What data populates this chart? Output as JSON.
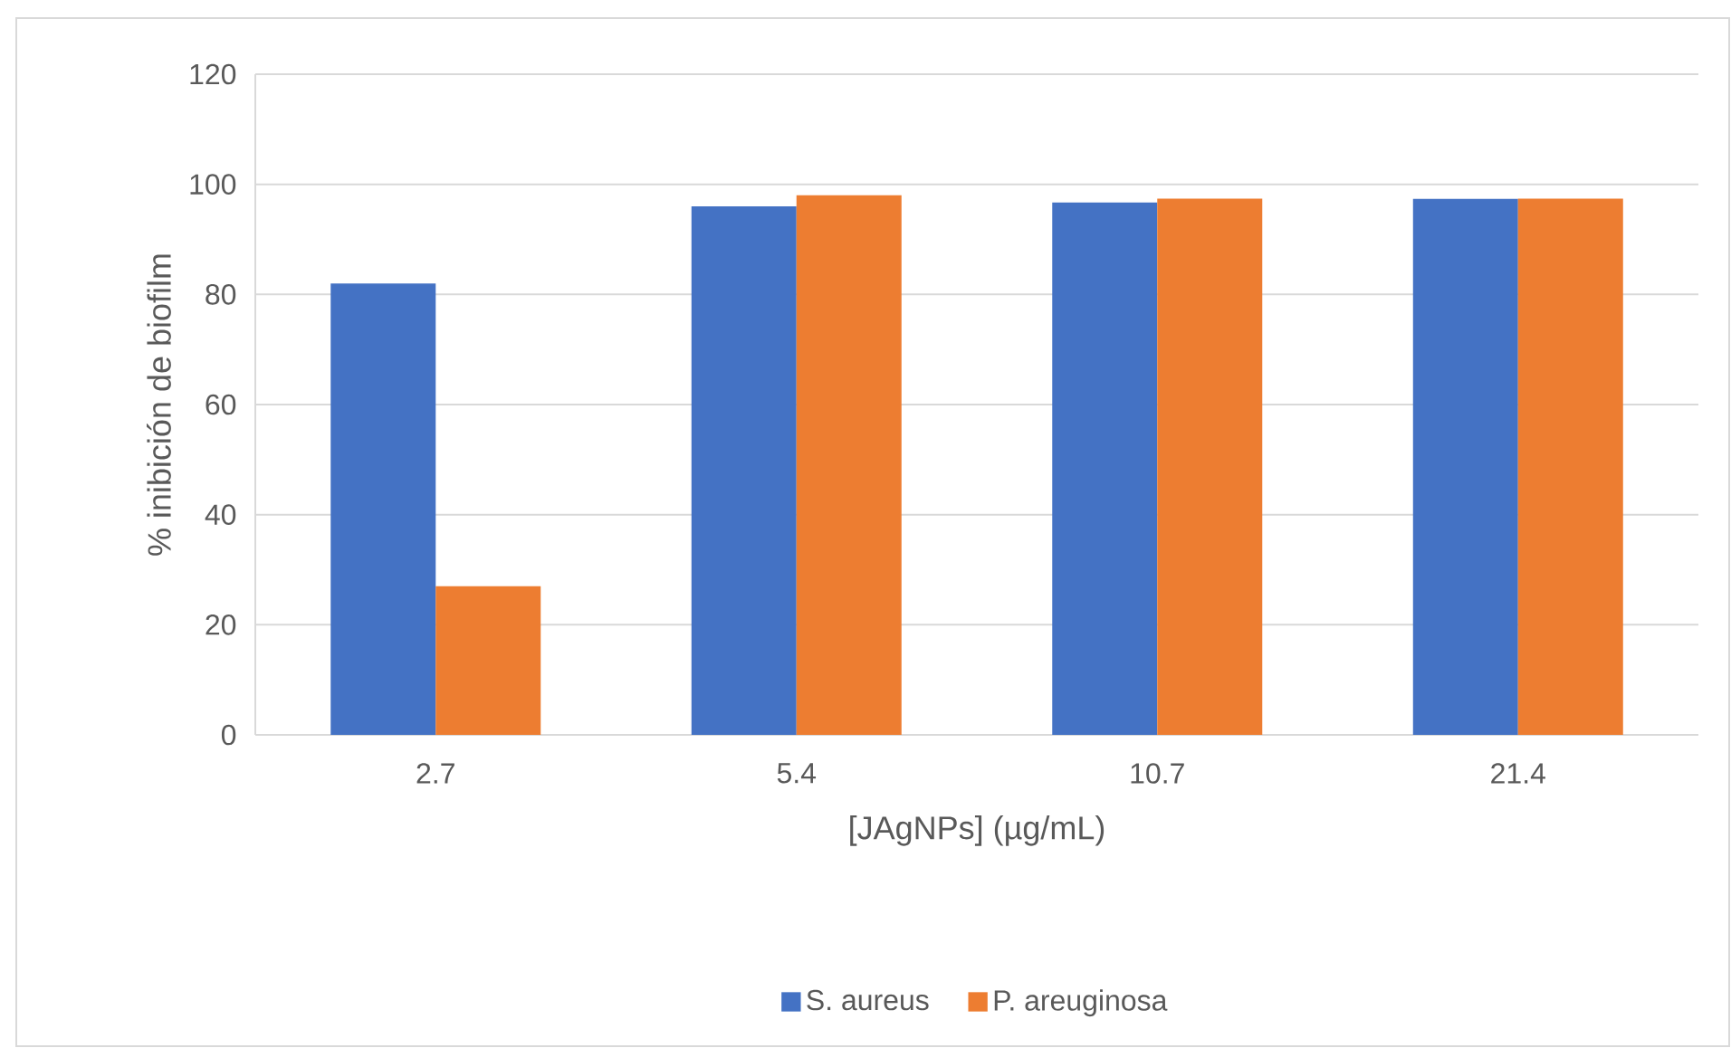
{
  "chart_data": {
    "type": "bar",
    "xlabel": "[JAgNPs] (µg/mL)",
    "ylabel": "% inibición de biofilm",
    "categories": [
      "2.7",
      "5.4",
      "10.7",
      "21.4"
    ],
    "series": [
      {
        "name": "S. aureus",
        "color": "#4472c4",
        "values": [
          82,
          96,
          96.7,
          97.4
        ]
      },
      {
        "name": "P. areuginosa",
        "color": "#ed7d31",
        "values": [
          27,
          98,
          97.4,
          97.4
        ]
      }
    ],
    "ylim": [
      0,
      120
    ],
    "yticks": [
      0,
      20,
      40,
      60,
      80,
      100,
      120
    ],
    "grid": "y",
    "legend": "bottom"
  }
}
